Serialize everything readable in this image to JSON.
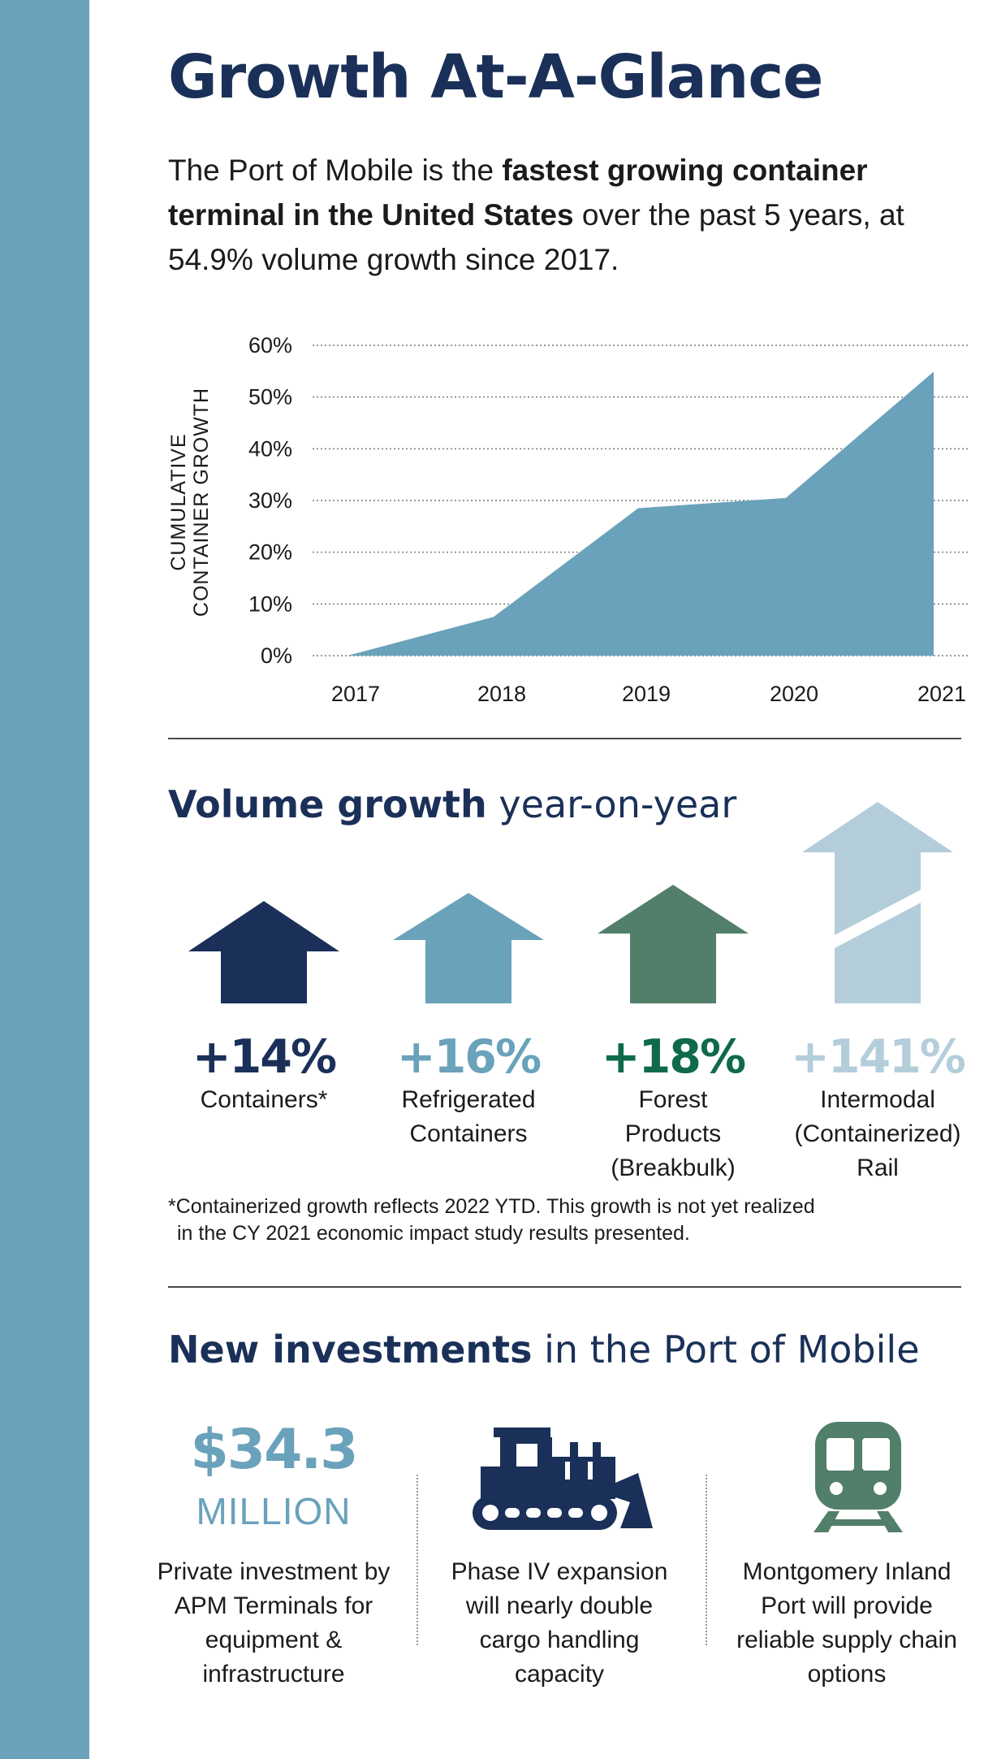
{
  "title": "Growth At-A-Glance",
  "intro": {
    "part1": "The Port of Mobile is the ",
    "bold": "fastest growing container terminal in the United States",
    "part2": " over the past 5 years, at 54.9% volume growth since 2017."
  },
  "chart_data": {
    "type": "area",
    "x": [
      "2017",
      "2018",
      "2019",
      "2020",
      "2021"
    ],
    "values": [
      0,
      7.5,
      28.5,
      30.5,
      54.9
    ],
    "ylabel": [
      "CUMULATIVE",
      "CONTAINER GROWTH"
    ],
    "yticks": [
      "0%",
      "10%",
      "20%",
      "30%",
      "40%",
      "50%",
      "60%"
    ],
    "ylim": [
      0,
      60
    ],
    "grid": true,
    "fill_color": "#6aa2bb"
  },
  "volume": {
    "heading_bold": "Volume growth",
    "heading_rest": " year-on-year",
    "items": [
      {
        "value": "+14%",
        "label": "Containers*",
        "color": "#1a3058"
      },
      {
        "value": "+16%",
        "label": "Refrigerated Containers",
        "color": "#6aa2bb"
      },
      {
        "value": "+18%",
        "label": "Forest Products (Breakbulk)",
        "color": "#0e6a4a"
      },
      {
        "value": "+141%",
        "label": "Intermodal (Containerized) Rail",
        "color": "#b4cddb"
      }
    ],
    "footnote_line1": "*Containerized growth reflects 2022 YTD. This growth is not yet realized",
    "footnote_line2": "in the CY 2021 economic impact study results presented."
  },
  "investments": {
    "heading_bold": "New investments",
    "heading_rest": " in the Port of Mobile",
    "amount": "$34.3",
    "unit": "MILLION",
    "items": [
      {
        "text": "Private investment by APM Terminals for equipment & infrastructure"
      },
      {
        "text": "Phase IV expansion will nearly double cargo handling capacity",
        "icon": "bulldozer-icon"
      },
      {
        "text": "Montgomery Inland Port will provide reliable supply chain options",
        "icon": "train-icon"
      }
    ],
    "colors": {
      "navy": "#1a3058",
      "steel_blue": "#6aa2bb",
      "green": "#517f6a",
      "light_blue": "#b4cddb"
    }
  }
}
